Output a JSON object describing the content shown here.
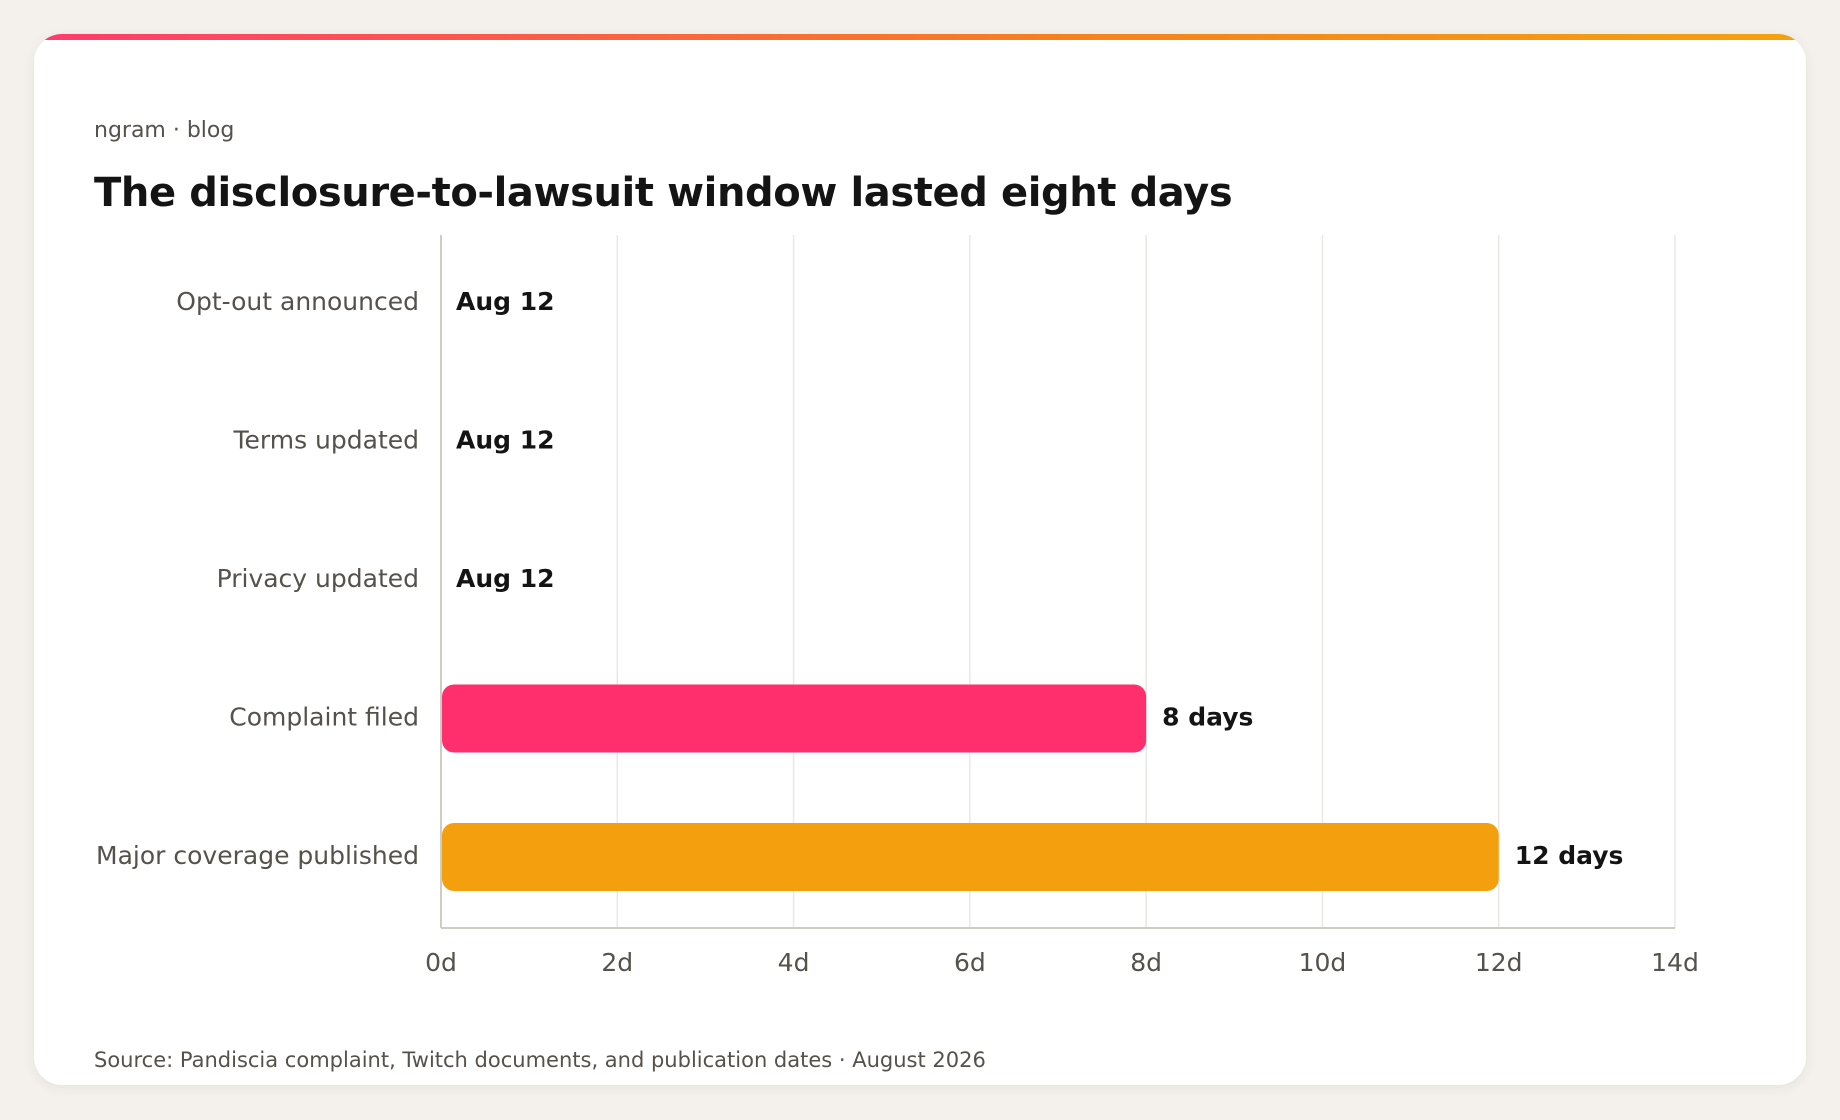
{
  "header": {
    "kicker": "ngram · blog",
    "title": "The disclosure-to-lawsuit window lasted eight days"
  },
  "footer": {
    "source": "Source: Pandiscia complaint, Twitch documents, and publication dates · August 2026"
  },
  "colors": {
    "background": "#f4f1ec",
    "card": "#ffffff",
    "accent_start": "#ff3a6e",
    "accent_end": "#f5a10e",
    "complaint_bar": "#ff2f6d",
    "coverage_bar": "#f49f0e",
    "category_label": "#55514b",
    "value_label": "#141414",
    "grid": "#ebe8e3"
  },
  "chart_data": {
    "type": "bar",
    "orientation": "horizontal",
    "title": "The disclosure-to-lawsuit window lasted eight days",
    "categories": [
      "Opt-out announced",
      "Terms updated",
      "Privacy updated",
      "Complaint filed",
      "Major coverage published"
    ],
    "values": [
      0,
      0,
      0,
      8,
      12
    ],
    "value_labels": [
      "Aug 12",
      "Aug 12",
      "Aug 12",
      "8 days",
      "12 days"
    ],
    "bar_colors": [
      "#ff2f6d",
      "#ff2f6d",
      "#ff2f6d",
      "#ff2f6d",
      "#f49f0e"
    ],
    "xlim": [
      0,
      14
    ],
    "xticks": [
      0,
      2,
      4,
      6,
      8,
      10,
      12,
      14
    ],
    "xtick_labels": [
      "0d",
      "2d",
      "4d",
      "6d",
      "8d",
      "10d",
      "12d",
      "14d"
    ],
    "xlabel": "",
    "ylabel": "",
    "grid": "vertical",
    "legend": "none"
  }
}
